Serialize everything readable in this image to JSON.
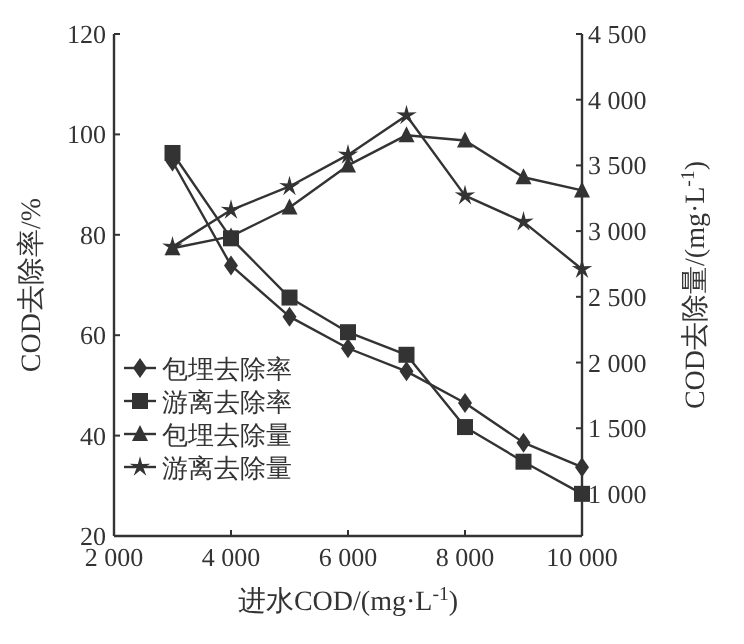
{
  "chart_data": {
    "type": "line",
    "xlabel": "进水COD/(mg·L$^{-1}$)",
    "ylabel": "COD去除率/%",
    "y2label": "COD去除量/(mg·L$^{-1}$)",
    "xlim": [
      2000,
      10000
    ],
    "xticks": [
      {
        "value": 2000,
        "label": "2 000"
      },
      {
        "value": 4000,
        "label": "4 000"
      },
      {
        "value": 6000,
        "label": "6 000"
      },
      {
        "value": 8000,
        "label": "8 000"
      },
      {
        "value": 10000,
        "label": "10 000"
      }
    ],
    "ylim": [
      20,
      120
    ],
    "yticks": [
      20,
      40,
      60,
      80,
      100,
      120
    ],
    "y2lim": [
      680,
      4500
    ],
    "y2ticks": [
      {
        "value": 1000,
        "label": "1 000"
      },
      {
        "value": 1500,
        "label": "1 500"
      },
      {
        "value": 2000,
        "label": "2 000"
      },
      {
        "value": 2500,
        "label": "2 500"
      },
      {
        "value": 3000,
        "label": "3 000"
      },
      {
        "value": 3500,
        "label": "3 500"
      },
      {
        "value": 4000,
        "label": "4 000"
      },
      {
        "value": 4500,
        "label": "4 500"
      }
    ],
    "x": [
      3000,
      4000,
      5000,
      6000,
      7000,
      8000,
      9000,
      10000
    ],
    "series": [
      {
        "name": "包埋去除率",
        "color": "#333333",
        "marker": "diamond",
        "values": [
          94.6,
          73.9,
          63.7,
          57.4,
          52.8,
          46.5,
          38.6,
          33.7
        ]
      },
      {
        "name": "游离去除率",
        "color": "#333333",
        "marker": "square",
        "values": [
          96.3,
          79.3,
          67.5,
          60.6,
          56.1,
          41.7,
          34.8,
          28.4
        ]
      },
      {
        "name": "包埋去除量",
        "color": "#333333",
        "marker": "triangle",
        "axis": "y2",
        "values": [
          2870,
          2960,
          3180,
          3500,
          3730,
          3690,
          3410,
          3310
        ]
      },
      {
        "name": "游离去除量",
        "color": "#333333",
        "marker": "star",
        "axis": "y2",
        "values": [
          2880,
          3160,
          3340,
          3580,
          3880,
          3270,
          3070,
          2710
        ]
      }
    ],
    "legend": "bottom left",
    "grid": false,
    "line_style": "solid"
  }
}
